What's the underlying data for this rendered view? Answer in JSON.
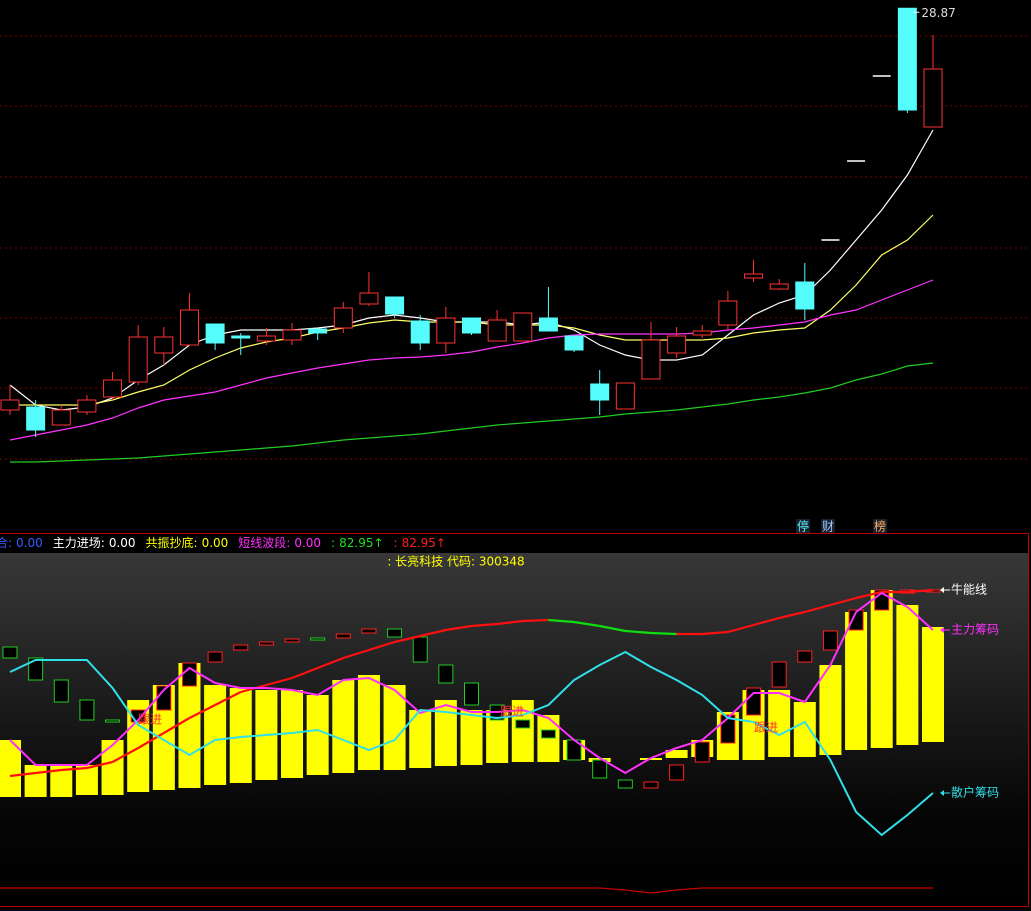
{
  "chart_data": [
    {
      "type": "candlestick",
      "categories": [
        null,
        null,
        null,
        null,
        null,
        null,
        null,
        null,
        null,
        null,
        null,
        null,
        null,
        null,
        null,
        null,
        null,
        null,
        null,
        null,
        null,
        null,
        null,
        null,
        null,
        null,
        null,
        null,
        null,
        null,
        null,
        null,
        null,
        null,
        null,
        null,
        null
      ],
      "open": [
        12.8,
        12.92,
        12.2,
        12.72,
        13.32,
        13.92,
        15.08,
        15.4,
        16.24,
        15.76,
        15.56,
        15.6,
        16.04,
        16.08,
        17.04,
        17.32,
        16.36,
        15.48,
        16.48,
        15.56,
        15.56,
        16.48,
        15.76,
        13.84,
        12.84,
        14.04,
        15.08,
        15.8,
        16.2,
        18.08,
        17.64,
        17.92,
        19.6,
        22.76,
        26.16,
        28.87,
        24.12
      ],
      "high": [
        13.8,
        13.2,
        13.0,
        13.4,
        14.32,
        16.2,
        16.12,
        17.48,
        16.24,
        15.88,
        16.08,
        16.28,
        16.04,
        17.12,
        18.32,
        17.32,
        16.6,
        16.92,
        16.48,
        16.8,
        16.68,
        17.72,
        15.76,
        14.4,
        13.88,
        16.32,
        16.12,
        16.2,
        17.56,
        18.8,
        18.04,
        18.68,
        19.6,
        22.76,
        26.16,
        28.87,
        27.8
      ],
      "low": [
        12.6,
        11.72,
        12.2,
        12.6,
        13.2,
        13.8,
        14.6,
        15.4,
        15.2,
        15.0,
        15.4,
        15.4,
        15.6,
        15.88,
        16.96,
        16.48,
        15.2,
        15.08,
        15.8,
        15.56,
        15.56,
        15.96,
        15.12,
        12.6,
        12.84,
        14.04,
        14.88,
        15.68,
        16.0,
        17.92,
        17.6,
        16.4,
        19.6,
        22.76,
        26.16,
        24.68,
        24.12
      ],
      "close": [
        13.2,
        12.0,
        12.8,
        13.2,
        14.0,
        15.72,
        15.72,
        16.8,
        15.48,
        15.68,
        15.76,
        16.0,
        15.88,
        16.88,
        17.48,
        16.64,
        15.48,
        16.48,
        15.88,
        16.4,
        16.68,
        15.96,
        15.2,
        13.2,
        13.88,
        15.6,
        15.76,
        15.96,
        17.16,
        18.24,
        17.84,
        16.84,
        19.6,
        22.76,
        26.16,
        24.8,
        26.44
      ],
      "up_color": "#ff3232",
      "down_color": "#54fcfc",
      "flat_color": "#ffffff",
      "lines": [
        {
          "color": "#ffffff",
          "values": [
            13.8,
            13.0,
            12.8,
            12.92,
            13.28,
            14.0,
            14.6,
            15.4,
            15.8,
            16.0,
            16.0,
            16.0,
            16.08,
            16.2,
            16.48,
            16.6,
            16.48,
            16.32,
            16.32,
            16.32,
            16.2,
            16.32,
            16.0,
            15.4,
            15.0,
            14.8,
            14.8,
            15.0,
            15.8,
            16.6,
            17.08,
            17.4,
            18.4,
            19.6,
            20.8,
            22.2,
            24.0
          ]
        },
        {
          "color": "#ffff66",
          "values": [
            13.0,
            13.0,
            13.0,
            13.0,
            13.2,
            13.52,
            13.8,
            14.4,
            14.88,
            15.28,
            15.52,
            15.68,
            15.92,
            16.08,
            16.28,
            16.4,
            16.32,
            16.32,
            16.32,
            16.2,
            16.2,
            16.2,
            16.08,
            15.8,
            15.6,
            15.6,
            15.6,
            15.6,
            15.68,
            15.88,
            16.0,
            16.08,
            16.8,
            17.8,
            19.0,
            19.6,
            20.6
          ]
        },
        {
          "color": "#ff33ff",
          "values": [
            11.6,
            11.8,
            12.0,
            12.2,
            12.48,
            12.88,
            13.2,
            13.36,
            13.52,
            13.8,
            14.08,
            14.28,
            14.48,
            14.64,
            14.8,
            14.88,
            14.92,
            15.0,
            15.12,
            15.32,
            15.48,
            15.68,
            15.8,
            15.84,
            15.84,
            15.84,
            15.84,
            15.88,
            16.0,
            16.08,
            16.2,
            16.32,
            16.6,
            16.8,
            17.2,
            17.6,
            18.0
          ]
        },
        {
          "color": "#22cc22",
          "values": [
            10.72,
            10.72,
            10.76,
            10.8,
            10.84,
            10.88,
            10.96,
            11.04,
            11.12,
            11.2,
            11.28,
            11.36,
            11.48,
            11.6,
            11.68,
            11.76,
            11.84,
            11.96,
            12.08,
            12.2,
            12.28,
            12.36,
            12.44,
            12.52,
            12.64,
            12.72,
            12.8,
            12.92,
            13.04,
            13.2,
            13.32,
            13.48,
            13.68,
            14.0,
            14.24,
            14.56,
            14.68
          ]
        }
      ],
      "high_label": {
        "text": "28.87",
        "index": 35
      },
      "ylim": [
        8,
        29.2
      ]
    },
    {
      "type": "indicator",
      "title": ": 长亮科技 代码: 300348",
      "categories": [
        null,
        null,
        null,
        null,
        null,
        null,
        null,
        null,
        null,
        null,
        null,
        null,
        null,
        null,
        null,
        null,
        null,
        null,
        null,
        null,
        null,
        null,
        null,
        null,
        null,
        null,
        null,
        null,
        null,
        null,
        null,
        null,
        null,
        null,
        null,
        null,
        null
      ],
      "column_color": "#ffff00",
      "column_top": [
        165,
        140,
        140,
        140,
        165,
        205,
        220,
        242,
        220,
        217,
        215,
        215,
        210,
        225,
        230,
        220,
        195,
        205,
        195,
        195,
        205,
        190,
        165,
        147,
        null,
        147,
        155,
        165,
        193,
        215,
        215,
        203,
        240,
        293,
        315,
        300,
        278
      ],
      "column_bottom": [
        108,
        108,
        108,
        110,
        110,
        113,
        115,
        117,
        120,
        122,
        125,
        127,
        130,
        132,
        135,
        135,
        137,
        139,
        140,
        142,
        143,
        143,
        145,
        143,
        null,
        145,
        147,
        148,
        145,
        145,
        148,
        148,
        150,
        155,
        157,
        160,
        163
      ],
      "box_up_color": "#ff2020",
      "box_down_color": "#22cc22",
      "box_open": [
        258,
        247,
        225,
        205,
        185,
        183,
        195,
        219,
        243,
        255,
        260,
        263,
        267,
        267,
        272,
        276,
        268,
        240,
        222,
        200,
        185,
        175,
        165,
        145,
        125,
        117,
        125,
        143,
        162,
        190,
        218,
        243,
        255,
        275,
        295,
        312,
        313
      ],
      "box_close": [
        247,
        225,
        203,
        185,
        183,
        195,
        219,
        242,
        253,
        260,
        263,
        266,
        265,
        271,
        276,
        268,
        243,
        222,
        200,
        185,
        177,
        167,
        145,
        127,
        117,
        123,
        140,
        163,
        190,
        217,
        243,
        254,
        274,
        295,
        315,
        315,
        315
      ],
      "series": [
        {
          "name": "牛能线",
          "up_color": "#ff1010",
          "down_color": "#10dd10",
          "legend_color": "#ffffff",
          "values": [
            129,
            132,
            135,
            137,
            143,
            157,
            172,
            187,
            200,
            213,
            220,
            227,
            237,
            247,
            255,
            263,
            269,
            275,
            279,
            281,
            284,
            285,
            283,
            279,
            274,
            272,
            271,
            271,
            273,
            280,
            287,
            293,
            300,
            307,
            313,
            313,
            315
          ]
        },
        {
          "name": "主力筹码",
          "color": "#ff30ff",
          "legend_color": "#ff30ff",
          "values": [
            165,
            140,
            140,
            140,
            160,
            185,
            215,
            237,
            222,
            217,
            217,
            215,
            210,
            225,
            227,
            215,
            192,
            200,
            193,
            193,
            195,
            187,
            165,
            147,
            132,
            147,
            157,
            165,
            187,
            212,
            212,
            203,
            240,
            293,
            312,
            298,
            275
          ]
        },
        {
          "name": "散户筹码",
          "color": "#30e0e8",
          "legend_color": "#30e0e8",
          "values": [
            233,
            245,
            245,
            245,
            217,
            180,
            165,
            150,
            165,
            168,
            170,
            172,
            175,
            165,
            155,
            165,
            195,
            193,
            190,
            187,
            190,
            200,
            225,
            240,
            253,
            238,
            225,
            210,
            187,
            183,
            170,
            183,
            145,
            93,
            70,
            90,
            112
          ]
        },
        {
          "color": "#cc0000",
          "values": [
            17,
            17,
            17,
            17,
            17,
            17,
            17,
            17,
            17,
            17,
            17,
            17,
            17,
            17,
            17,
            17,
            17,
            17,
            17,
            17,
            17,
            17,
            17,
            17,
            15,
            12,
            15,
            17,
            17,
            17,
            17,
            17,
            17,
            17,
            17,
            17,
            17
          ]
        }
      ],
      "annotations": [
        "跟进",
        "跟进",
        "跟进"
      ],
      "annotation_color": "#ff3030",
      "ylim": [
        0,
        350
      ]
    }
  ],
  "toolbar": [
    {
      "text": "停",
      "color": "#54fcfc"
    },
    {
      "text": "财",
      "color": "#a0c8ff"
    },
    {
      "text": "榜",
      "color": "#ffb060"
    }
  ],
  "indicator_bar": [
    {
      "label": "合:",
      "value": "0.00",
      "color": "#3a5cff"
    },
    {
      "label": "主力进场:",
      "value": "0.00",
      "color": "#ffffff"
    },
    {
      "label": "共振抄底:",
      "value": "0.00",
      "color": "#ffff00"
    },
    {
      "label": "短线波段:",
      "value": "0.00",
      "color": "#ff30ff"
    },
    {
      "label": ":",
      "value": "82.95↑",
      "color": "#22dd22"
    },
    {
      "label": ":",
      "value": "82.95↑",
      "color": "#ff2020"
    }
  ]
}
